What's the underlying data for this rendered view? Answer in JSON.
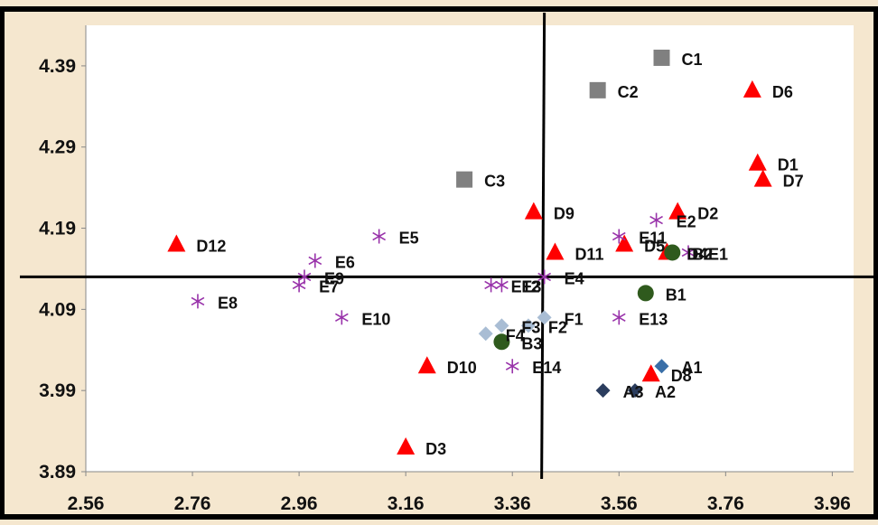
{
  "chart_data": {
    "type": "scatter",
    "title": "",
    "xlabel": "",
    "ylabel": "",
    "xlim": [
      2.56,
      4.0
    ],
    "ylim": [
      3.89,
      4.44
    ],
    "x_ticks": [
      2.56,
      2.76,
      2.96,
      3.16,
      3.36,
      3.56,
      3.76,
      3.96
    ],
    "y_ticks": [
      3.89,
      3.99,
      4.09,
      4.19,
      4.29,
      4.39
    ],
    "x_tick_labels": [
      "2.56",
      "2.76",
      "2.96",
      "3.16",
      "3.36",
      "3.56",
      "3.76",
      "3.96"
    ],
    "y_tick_labels": [
      "3.89",
      "3.99",
      "4.09",
      "4.19",
      "4.29",
      "4.39"
    ],
    "grid": false,
    "reference_lines": {
      "x": 3.42,
      "y": 4.13
    },
    "series": [
      {
        "marker": "square",
        "color": "#808080",
        "points": [
          {
            "label": "C1",
            "x": 3.64,
            "y": 4.4
          },
          {
            "label": "C2",
            "x": 3.52,
            "y": 4.36
          },
          {
            "label": "C3",
            "x": 3.27,
            "y": 4.25
          }
        ]
      },
      {
        "marker": "triangle",
        "color": "#ff0000",
        "points": [
          {
            "label": "D6",
            "x": 3.81,
            "y": 4.36
          },
          {
            "label": "D1",
            "x": 3.82,
            "y": 4.27
          },
          {
            "label": "D7",
            "x": 3.83,
            "y": 4.25
          },
          {
            "label": "D2",
            "x": 3.67,
            "y": 4.21
          },
          {
            "label": "D9",
            "x": 3.4,
            "y": 4.21
          },
          {
            "label": "D12",
            "x": 2.73,
            "y": 4.17
          },
          {
            "label": "D11",
            "x": 3.44,
            "y": 4.16
          },
          {
            "label": "D5",
            "x": 3.57,
            "y": 4.17
          },
          {
            "label": "D4",
            "x": 3.65,
            "y": 4.16
          },
          {
            "label": "D10",
            "x": 3.2,
            "y": 4.02
          },
          {
            "label": "D8",
            "x": 3.62,
            "y": 4.01
          },
          {
            "label": "D3",
            "x": 3.16,
            "y": 3.92
          }
        ]
      },
      {
        "marker": "asterisk",
        "color": "#9933aa",
        "points": [
          {
            "label": "E5",
            "x": 3.11,
            "y": 4.18
          },
          {
            "label": "E6",
            "x": 2.99,
            "y": 4.15
          },
          {
            "label": "E7",
            "x": 2.96,
            "y": 4.12
          },
          {
            "label": "E9",
            "x": 2.97,
            "y": 4.13
          },
          {
            "label": "E8",
            "x": 2.77,
            "y": 4.1
          },
          {
            "label": "E10",
            "x": 3.04,
            "y": 4.08
          },
          {
            "label": "E12",
            "x": 3.32,
            "y": 4.12
          },
          {
            "label": "E3",
            "x": 3.34,
            "y": 4.12
          },
          {
            "label": "E4",
            "x": 3.42,
            "y": 4.13
          },
          {
            "label": "E11",
            "x": 3.56,
            "y": 4.18
          },
          {
            "label": "E2",
            "x": 3.63,
            "y": 4.2
          },
          {
            "label": "E1",
            "x": 3.69,
            "y": 4.16
          },
          {
            "label": "E13",
            "x": 3.56,
            "y": 4.08
          },
          {
            "label": "E14",
            "x": 3.36,
            "y": 4.02
          }
        ]
      },
      {
        "marker": "circle",
        "color": "#2f5a1d",
        "points": [
          {
            "label": "B1",
            "x": 3.61,
            "y": 4.11
          },
          {
            "label": "B2",
            "x": 3.66,
            "y": 4.16
          },
          {
            "label": "B3",
            "x": 3.34,
            "y": 4.05
          }
        ]
      },
      {
        "marker": "diamond",
        "color": "#a9bdd4",
        "points": [
          {
            "label": "F1",
            "x": 3.42,
            "y": 4.08
          },
          {
            "label": "F2",
            "x": 3.39,
            "y": 4.07
          },
          {
            "label": "F3",
            "x": 3.34,
            "y": 4.07
          },
          {
            "label": "F4",
            "x": 3.31,
            "y": 4.06
          }
        ]
      },
      {
        "marker": "diamond",
        "color": "#3a6fa8",
        "points": [
          {
            "label": "A1",
            "x": 3.64,
            "y": 4.02
          }
        ]
      },
      {
        "marker": "diamond",
        "color": "#2b3d5e",
        "points": [
          {
            "label": "A3",
            "x": 3.53,
            "y": 3.99
          },
          {
            "label": "A2",
            "x": 3.59,
            "y": 3.99
          }
        ]
      }
    ]
  }
}
